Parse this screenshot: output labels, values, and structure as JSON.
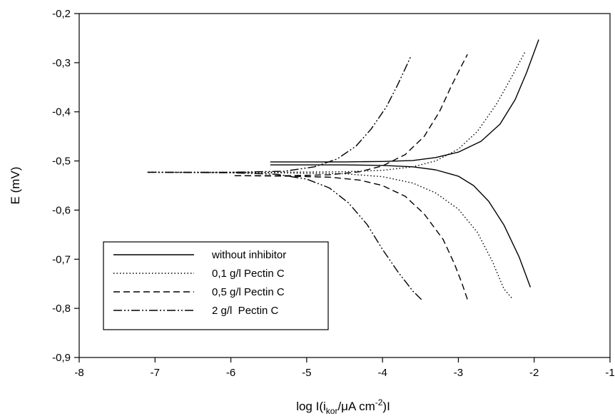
{
  "chart_data": {
    "type": "line",
    "title": "",
    "xlabel": "log I(i_kor/μA cm⁻²)I",
    "ylabel": "E (mV)",
    "xlim": [
      -8,
      -1
    ],
    "ylim": [
      -0.9,
      -0.2
    ],
    "x_ticks": [
      "-8",
      "-7",
      "-6",
      "-5",
      "-4",
      "-3",
      "-2",
      "-1"
    ],
    "y_ticks": [
      "-0,2",
      "-0,3",
      "-0,4",
      "-0,5",
      "-0,6",
      "-0,7",
      "-0,8",
      "-0,9"
    ],
    "grid": false,
    "legend_position": "bottom-left",
    "series": [
      {
        "name": "without inhibitor",
        "dash": "solid",
        "anodic": [
          [
            -5.48,
            -0.502
          ],
          [
            -4.5,
            -0.502
          ],
          [
            -4.0,
            -0.501
          ],
          [
            -3.6,
            -0.499
          ],
          [
            -3.3,
            -0.493
          ],
          [
            -3.0,
            -0.482
          ],
          [
            -2.7,
            -0.46
          ],
          [
            -2.45,
            -0.425
          ],
          [
            -2.25,
            -0.375
          ],
          [
            -2.1,
            -0.32
          ],
          [
            -1.94,
            -0.253
          ]
        ],
        "cathodic": [
          [
            -5.48,
            -0.508
          ],
          [
            -4.5,
            -0.508
          ],
          [
            -4.0,
            -0.509
          ],
          [
            -3.6,
            -0.512
          ],
          [
            -3.3,
            -0.518
          ],
          [
            -3.0,
            -0.531
          ],
          [
            -2.8,
            -0.55
          ],
          [
            -2.6,
            -0.582
          ],
          [
            -2.4,
            -0.63
          ],
          [
            -2.2,
            -0.695
          ],
          [
            -2.05,
            -0.757
          ]
        ]
      },
      {
        "name": "0,1 g/l Pectin C",
        "dash": "dotted",
        "anodic": [
          [
            -7.08,
            -0.523
          ],
          [
            -5.5,
            -0.523
          ],
          [
            -4.5,
            -0.522
          ],
          [
            -4.0,
            -0.519
          ],
          [
            -3.6,
            -0.512
          ],
          [
            -3.3,
            -0.5
          ],
          [
            -3.0,
            -0.476
          ],
          [
            -2.75,
            -0.44
          ],
          [
            -2.5,
            -0.385
          ],
          [
            -2.3,
            -0.33
          ],
          [
            -2.12,
            -0.278
          ]
        ],
        "cathodic": [
          [
            -7.08,
            -0.523
          ],
          [
            -5.5,
            -0.524
          ],
          [
            -4.5,
            -0.526
          ],
          [
            -4.0,
            -0.532
          ],
          [
            -3.6,
            -0.545
          ],
          [
            -3.3,
            -0.565
          ],
          [
            -3.0,
            -0.598
          ],
          [
            -2.75,
            -0.645
          ],
          [
            -2.55,
            -0.705
          ],
          [
            -2.4,
            -0.76
          ],
          [
            -2.28,
            -0.782
          ]
        ]
      },
      {
        "name": "0,5 g/l Pectin C",
        "dash": "dashed",
        "anodic": [
          [
            -5.95,
            -0.53
          ],
          [
            -5.2,
            -0.53
          ],
          [
            -4.7,
            -0.528
          ],
          [
            -4.3,
            -0.522
          ],
          [
            -4.0,
            -0.51
          ],
          [
            -3.7,
            -0.487
          ],
          [
            -3.45,
            -0.45
          ],
          [
            -3.25,
            -0.4
          ],
          [
            -3.1,
            -0.35
          ],
          [
            -2.97,
            -0.31
          ],
          [
            -2.88,
            -0.283
          ]
        ],
        "cathodic": [
          [
            -5.95,
            -0.53
          ],
          [
            -5.2,
            -0.531
          ],
          [
            -4.7,
            -0.533
          ],
          [
            -4.3,
            -0.539
          ],
          [
            -4.0,
            -0.55
          ],
          [
            -3.7,
            -0.572
          ],
          [
            -3.45,
            -0.608
          ],
          [
            -3.2,
            -0.66
          ],
          [
            -3.05,
            -0.71
          ],
          [
            -2.95,
            -0.75
          ],
          [
            -2.88,
            -0.782
          ]
        ]
      },
      {
        "name": "2 g/l  Pectin C",
        "dash": "dashdotdot",
        "anodic": [
          [
            -7.1,
            -0.523
          ],
          [
            -6.0,
            -0.523
          ],
          [
            -5.3,
            -0.521
          ],
          [
            -4.9,
            -0.512
          ],
          [
            -4.6,
            -0.496
          ],
          [
            -4.35,
            -0.47
          ],
          [
            -4.15,
            -0.435
          ],
          [
            -3.95,
            -0.39
          ],
          [
            -3.8,
            -0.345
          ],
          [
            -3.7,
            -0.312
          ],
          [
            -3.62,
            -0.285
          ]
        ],
        "cathodic": [
          [
            -7.1,
            -0.523
          ],
          [
            -6.0,
            -0.524
          ],
          [
            -5.4,
            -0.527
          ],
          [
            -5.0,
            -0.537
          ],
          [
            -4.7,
            -0.555
          ],
          [
            -4.45,
            -0.585
          ],
          [
            -4.2,
            -0.63
          ],
          [
            -4.0,
            -0.68
          ],
          [
            -3.8,
            -0.725
          ],
          [
            -3.6,
            -0.765
          ],
          [
            -3.48,
            -0.783
          ]
        ]
      }
    ]
  }
}
